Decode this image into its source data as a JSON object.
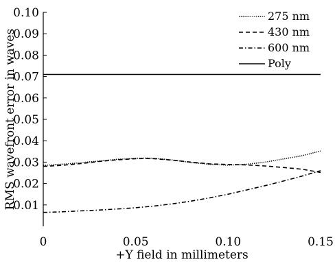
{
  "chart_data": {
    "type": "line",
    "xlabel": "+Y field in millimeters",
    "ylabel": "RMS wavefront error in waves",
    "xlim": [
      0,
      0.15
    ],
    "ylim": [
      0,
      0.1
    ],
    "x_ticks": [
      "0",
      "0.05",
      "0.10",
      "0.15"
    ],
    "y_ticks": [
      "0.01",
      "0.02",
      "0.03",
      "0.04",
      "0.05",
      "0.06",
      "0.07",
      "0.08",
      "0.09",
      "0.10"
    ],
    "grid": false,
    "legend_position": "top-right",
    "series": [
      {
        "name": "275 nm",
        "style": "dotted",
        "x": [
          0,
          0.01,
          0.02,
          0.03,
          0.04,
          0.05,
          0.055,
          0.06,
          0.07,
          0.08,
          0.09,
          0.1,
          0.11,
          0.12,
          0.13,
          0.14,
          0.15
        ],
        "y": [
          0.0285,
          0.029,
          0.0297,
          0.0305,
          0.0313,
          0.0318,
          0.0319,
          0.0318,
          0.031,
          0.0298,
          0.029,
          0.0286,
          0.029,
          0.03,
          0.0315,
          0.033,
          0.0352
        ]
      },
      {
        "name": "430 nm",
        "style": "dashed",
        "x": [
          0,
          0.01,
          0.02,
          0.03,
          0.04,
          0.05,
          0.055,
          0.06,
          0.07,
          0.08,
          0.09,
          0.1,
          0.11,
          0.12,
          0.13,
          0.14,
          0.15
        ],
        "y": [
          0.028,
          0.0285,
          0.0293,
          0.0303,
          0.0311,
          0.0316,
          0.0317,
          0.0316,
          0.0309,
          0.03,
          0.0292,
          0.0289,
          0.0287,
          0.0282,
          0.0275,
          0.0267,
          0.0252
        ]
      },
      {
        "name": "600 nm",
        "style": "dashdot",
        "x": [
          0,
          0.01,
          0.02,
          0.03,
          0.04,
          0.05,
          0.06,
          0.07,
          0.08,
          0.09,
          0.1,
          0.11,
          0.12,
          0.13,
          0.14,
          0.15
        ],
        "y": [
          0.0065,
          0.0068,
          0.0072,
          0.0076,
          0.0081,
          0.0087,
          0.0095,
          0.0105,
          0.0118,
          0.0133,
          0.015,
          0.017,
          0.019,
          0.0212,
          0.0235,
          0.026
        ]
      },
      {
        "name": "Poly",
        "style": "solid",
        "x": [
          0,
          0.15
        ],
        "y": [
          0.071,
          0.071
        ]
      }
    ]
  }
}
